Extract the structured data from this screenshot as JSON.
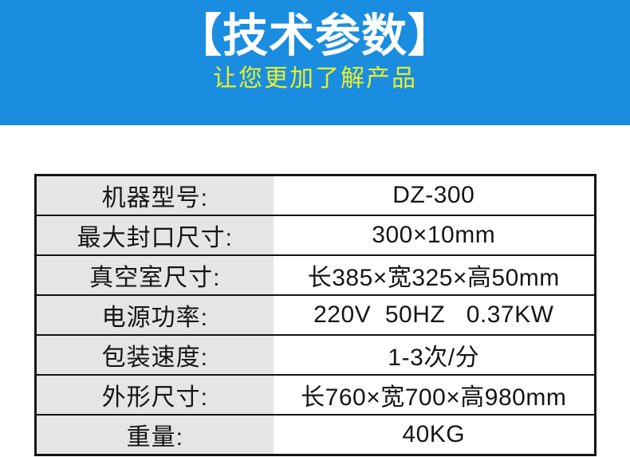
{
  "header": {
    "title": "【技术参数】",
    "subtitle": "让您更加了解产品",
    "background_color": "#1b8de0",
    "title_color": "#ffffff",
    "subtitle_color": "#e7f02b"
  },
  "table": {
    "label_background": "#e5e5e5",
    "value_background": "#ffffff",
    "border_color": "#141414",
    "rows": [
      {
        "label": "机器型号:",
        "value": "DZ-300"
      },
      {
        "label": "最大封口尺寸:",
        "value": "300×10mm"
      },
      {
        "label": "真空室尺寸:",
        "value": "长385×宽325×高50mm"
      },
      {
        "label": "电源功率:",
        "value": "220V  50HZ   0.37KW"
      },
      {
        "label": "包装速度:",
        "value": "1-3次/分"
      },
      {
        "label": "外形尺寸:",
        "value": "长760×宽700×高980mm"
      },
      {
        "label": "重量:",
        "value": "40KG"
      }
    ]
  }
}
